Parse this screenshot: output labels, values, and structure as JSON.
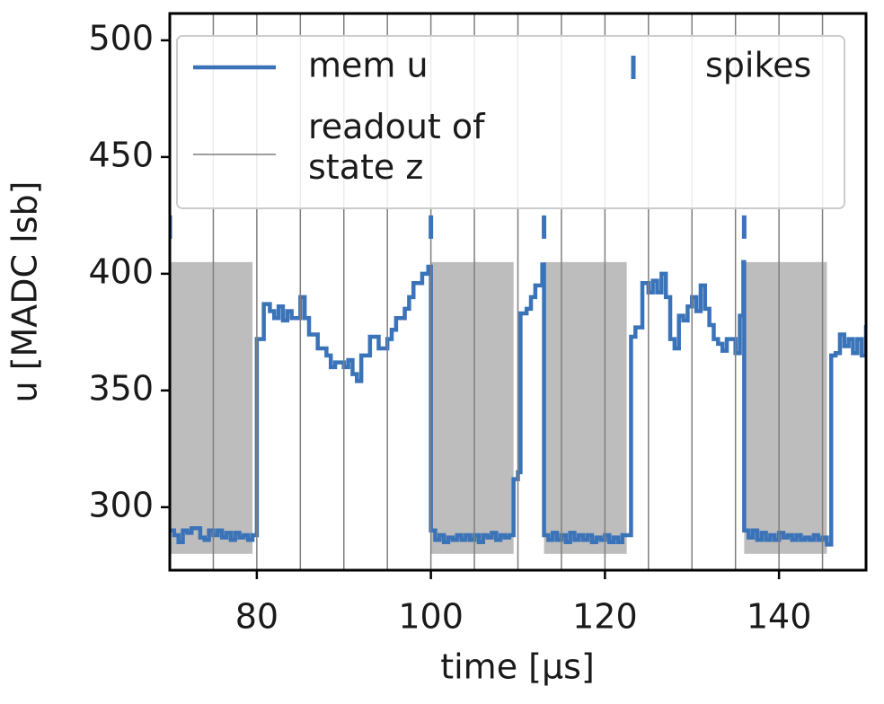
{
  "chart_data": {
    "type": "line",
    "xlabel": "time [µs]",
    "ylabel": "u [MADC lsb]",
    "xlim": [
      70,
      150
    ],
    "ylim": [
      273,
      511.5
    ],
    "xticks": [
      80,
      100,
      120,
      140
    ],
    "yticks": [
      300,
      350,
      400,
      450,
      500
    ],
    "series": [
      {
        "name": "mem u",
        "color": "#3b73b9",
        "x": [
          70,
          70.5,
          71,
          71.5,
          72,
          72.5,
          73,
          73.5,
          74,
          74.5,
          75,
          75.5,
          76,
          76.5,
          77,
          77.5,
          78,
          78.5,
          79,
          79.5,
          80,
          80.8,
          81.5,
          82,
          82.5,
          83,
          83.5,
          84,
          85,
          85.5,
          86,
          87,
          88,
          88.5,
          89,
          90,
          90.5,
          91,
          91.5,
          92,
          93,
          94,
          95,
          95.5,
          96,
          97,
          97.5,
          98,
          99,
          99.7,
          100,
          100.5,
          101,
          101.5,
          102,
          102.5,
          103,
          103.5,
          104,
          104.5,
          105,
          105.5,
          106,
          106.5,
          107,
          107.5,
          108,
          108.5,
          109,
          109.5,
          110,
          110.3,
          111,
          111.5,
          112,
          112.8,
          113,
          113.5,
          114,
          114.5,
          115,
          115.5,
          116,
          116.5,
          117,
          117.5,
          118,
          118.5,
          119,
          119.5,
          120,
          120.5,
          121,
          121.5,
          122,
          123,
          123.5,
          124.3,
          125,
          125.5,
          126,
          126.5,
          127,
          127.5,
          128,
          128.5,
          129,
          129.5,
          130,
          130.5,
          131,
          131.5,
          132,
          132.5,
          133,
          133.5,
          134,
          135,
          135.5,
          135.9,
          136,
          136.5,
          137,
          137.5,
          138,
          138.5,
          139,
          139.5,
          140,
          140.5,
          141,
          141.5,
          142,
          142.5,
          143,
          143.5,
          144,
          144.5,
          145,
          145.5,
          146,
          146.5,
          147,
          147.5,
          148,
          148.5,
          149,
          149.5,
          150
        ],
        "values": [
          290,
          288,
          285,
          290,
          289,
          291,
          291,
          287,
          286,
          290,
          288,
          290,
          287,
          289,
          286,
          289,
          287,
          288,
          286,
          288,
          372,
          387,
          384,
          381,
          386,
          380,
          384,
          381,
          390,
          381,
          374,
          368,
          365,
          360,
          362,
          360,
          363,
          357,
          354,
          365,
          373,
          368,
          372,
          376,
          381,
          385,
          390,
          396,
          400,
          403,
          290,
          286,
          288,
          285,
          287,
          286,
          288,
          286,
          288,
          286,
          288,
          285,
          288,
          287,
          289,
          286,
          288,
          287,
          288,
          312,
          315,
          383,
          385,
          390,
          395,
          404,
          288,
          286,
          289,
          286,
          288,
          285,
          289,
          286,
          288,
          286,
          288,
          285,
          287,
          286,
          288,
          285,
          287,
          285,
          288,
          373,
          377,
          396,
          392,
          397,
          392,
          400,
          390,
          372,
          368,
          382,
          380,
          386,
          390,
          384,
          395,
          385,
          378,
          372,
          370,
          367,
          372,
          366,
          382,
          405,
          290,
          287,
          290,
          286,
          289,
          286,
          288,
          286,
          289,
          287,
          288,
          286,
          288,
          286,
          287,
          286,
          288,
          286,
          287,
          284,
          365,
          366,
          374,
          369,
          372,
          366,
          372,
          365,
          378
        ]
      },
      {
        "name": "readout of\nstate z",
        "color": "#7f7f7f",
        "type": "vlines",
        "x": [
          75,
          80,
          85,
          90,
          95,
          100,
          105,
          110,
          115,
          120,
          125,
          130,
          135,
          140,
          145
        ]
      },
      {
        "name": "spikes",
        "color": "#3b73b9",
        "type": "event",
        "x": [
          70,
          100,
          113,
          136
        ],
        "values": [
          420,
          420,
          420,
          420
        ]
      }
    ],
    "shading": {
      "color": "#bdbdbd",
      "spans": [
        [
          70,
          79.5
        ],
        [
          100,
          109.5
        ],
        [
          113,
          122.5
        ],
        [
          136,
          145.5
        ]
      ],
      "ylim": [
        280,
        405
      ]
    },
    "legend": "upper"
  }
}
